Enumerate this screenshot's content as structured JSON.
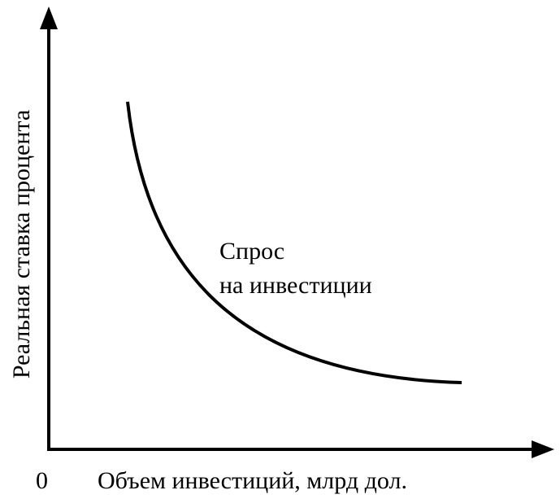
{
  "axes": {
    "y_label": "Реальная ставка процента",
    "x_label": "Объем инвестиций, млрд дол.",
    "origin": "0"
  },
  "curve": {
    "label": [
      "Спрос",
      "на инвестиции"
    ]
  }
}
